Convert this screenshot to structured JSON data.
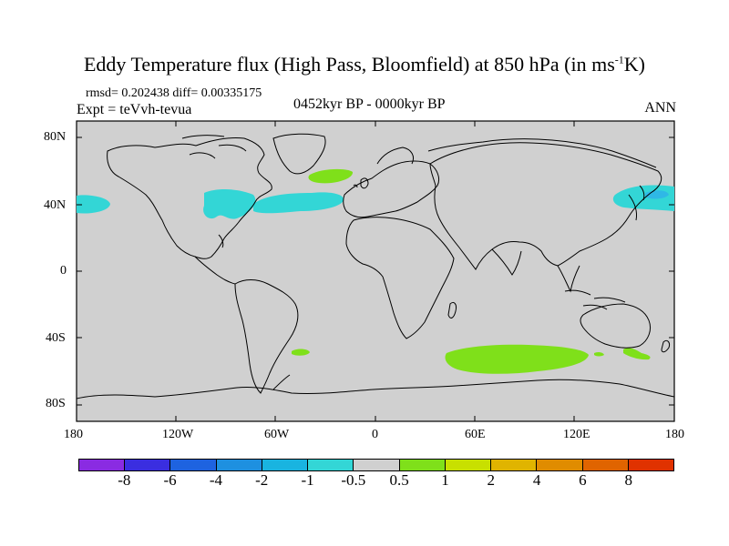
{
  "header": {
    "title_main": "Eddy Temperature flux (High Pass, Bloomfield) at 850 hPa (in ms",
    "title_sup": "-1",
    "title_end": "K)",
    "stats": "rmsd= 0.202438 diff= 0.00335175",
    "expt": "Expt = teVvh-tevua",
    "period": "0452kyr BP - 0000kyr BP",
    "season": "ANN"
  },
  "map": {
    "lon_ticks": [
      "180",
      "120W",
      "60W",
      "0",
      "60E",
      "120E",
      "180"
    ],
    "lat_ticks": [
      "80N",
      "40N",
      "0",
      "40S",
      "80S"
    ],
    "ocean_color": "#d0d0d0",
    "anomalies": [
      {
        "name": "north-pacific-east-neg",
        "color": "#33d6d6",
        "value": "-1"
      },
      {
        "name": "north-america-neg",
        "color": "#33d6d6",
        "value": "-1"
      },
      {
        "name": "north-atlantic-neg",
        "color": "#33d6d6",
        "value": "-1"
      },
      {
        "name": "north-atlantic-pos",
        "color": "#7fe01a",
        "value": "1"
      },
      {
        "name": "north-pacific-west-neg",
        "color": "#33d6d6",
        "value": "-1"
      },
      {
        "name": "north-pacific-west-core",
        "color": "#2fb8e6",
        "value": "-2"
      },
      {
        "name": "southern-ocean-indian-pos",
        "color": "#7fe01a",
        "value": "1"
      },
      {
        "name": "south-atlantic-pos",
        "color": "#7fe01a",
        "value": "1"
      },
      {
        "name": "south-pacific-west-pos",
        "color": "#7fe01a",
        "value": "1"
      }
    ]
  },
  "colorbar": {
    "colors": [
      "#8a2be2",
      "#3a2ee0",
      "#1e63e0",
      "#1e90e0",
      "#19b4e0",
      "#33d6d6",
      "#d0d0d0",
      "#7fe01a",
      "#c8e000",
      "#e0b400",
      "#e08c00",
      "#e06400",
      "#e03200"
    ],
    "labels": [
      "-8",
      "-6",
      "-4",
      "-2",
      "-1",
      "-0.5",
      "0.5",
      "1",
      "2",
      "4",
      "6",
      "8"
    ]
  }
}
